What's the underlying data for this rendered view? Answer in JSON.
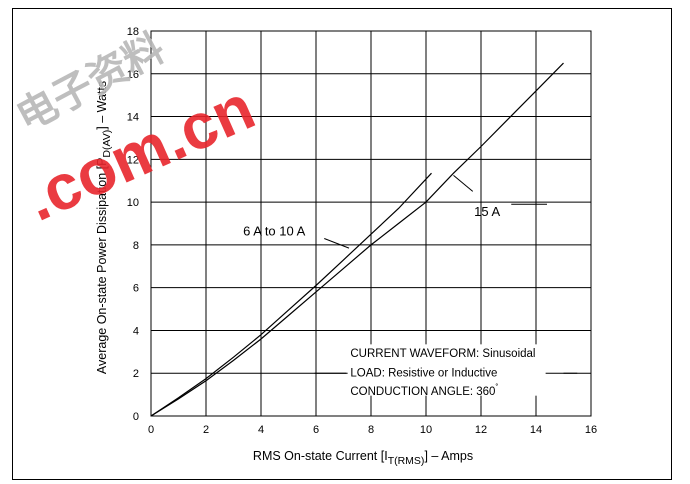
{
  "chart_data": {
    "type": "line",
    "xlabel": {
      "prefix": "RMS On-state Current [I",
      "subscript": "T(RMS)",
      "suffix": "] – Amps"
    },
    "ylabel": {
      "prefix": "Average On-state Power Dissipation [P",
      "subscript": "D(AV)",
      "suffix": "] – Watts"
    },
    "xlim": [
      0,
      16
    ],
    "ylim": [
      0,
      18
    ],
    "xticks": [
      0,
      2,
      4,
      6,
      8,
      10,
      12,
      14,
      16
    ],
    "yticks": [
      0,
      2,
      4,
      6,
      8,
      10,
      12,
      14,
      16,
      18
    ],
    "grid": true,
    "series": [
      {
        "name": "6 A to 10 A",
        "x": [
          0,
          1,
          2,
          3,
          4,
          5,
          6,
          7,
          8,
          9,
          10.2
        ],
        "y": [
          0,
          0.85,
          1.75,
          2.75,
          3.8,
          4.95,
          6.1,
          7.3,
          8.5,
          9.7,
          11.35
        ]
      },
      {
        "name": "15 A",
        "x": [
          0,
          1,
          2,
          3,
          4,
          5,
          6,
          7,
          8,
          9,
          10,
          11,
          12,
          13,
          14,
          15
        ],
        "y": [
          0,
          0.8,
          1.65,
          2.6,
          3.6,
          4.7,
          5.8,
          6.9,
          8.0,
          9.0,
          10.0,
          11.35,
          12.6,
          13.9,
          15.2,
          16.5
        ]
      }
    ],
    "annotations": {
      "waveform": "CURRENT WAVEFORM: Sinusoidal",
      "load": "LOAD:  Resistive or Inductive",
      "angle": "CONDUCTION ANGLE: 360",
      "angle_unit": "˚"
    }
  },
  "watermark": {
    "text": ".com.cn",
    "cjk": "电子资料",
    "color": "#e8262d"
  }
}
